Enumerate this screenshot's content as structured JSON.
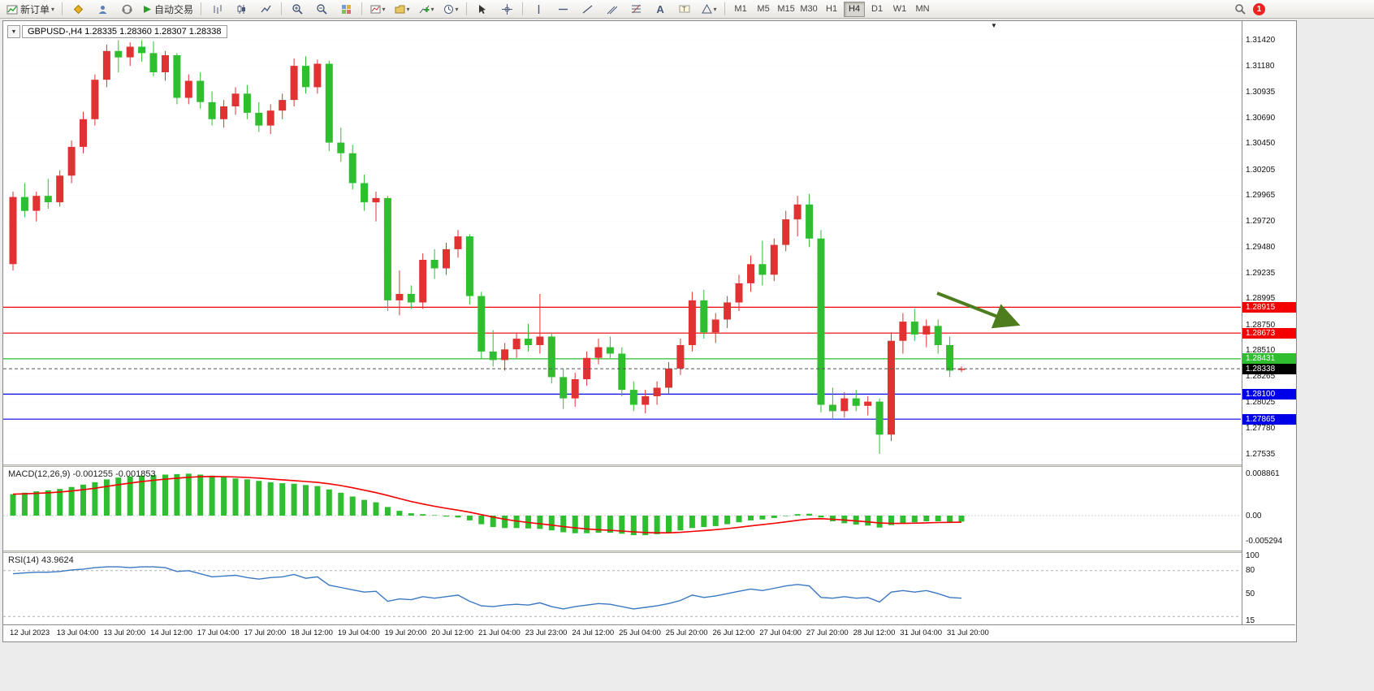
{
  "window": {
    "badge_count": "1"
  },
  "toolbar": {
    "new_order_label": "新订单",
    "autotrade_label": "自动交易",
    "timeframes": [
      {
        "label": "M1",
        "selected": false
      },
      {
        "label": "M5",
        "selected": false
      },
      {
        "label": "M15",
        "selected": false
      },
      {
        "label": "M30",
        "selected": false
      },
      {
        "label": "H1",
        "selected": false
      },
      {
        "label": "H4",
        "selected": true
      },
      {
        "label": "D1",
        "selected": false
      },
      {
        "label": "W1",
        "selected": false
      },
      {
        "label": "MN",
        "selected": false
      }
    ],
    "icons": [
      "new-order-icon",
      "mql-community-icon",
      "profile-icon",
      "support-icon",
      "autotrade-play-icon",
      "bar-chart-icon",
      "candlestick-chart-icon",
      "line-chart-icon",
      "zoom-in-icon",
      "zoom-out-icon",
      "tile-windows-icon",
      "new-chart-icon",
      "chart-profiles-icon",
      "indicators-icon",
      "periods-icon",
      "cursor-icon",
      "crosshair-icon",
      "vertical-line-icon",
      "horizontal-line-icon",
      "trendline-icon",
      "channel-icon",
      "fibonacci-icon",
      "text-icon",
      "text-label-icon",
      "shapes-icon",
      "search-icon",
      "notification-badge"
    ]
  },
  "chart": {
    "title": "GBPUSD-,H4 1.28335 1.28360 1.28307 1.28338",
    "collapse_glyph": "▼",
    "shift_marker_glyph": "▼"
  },
  "chart_data": [
    {
      "type": "candlestick",
      "symbol": "GBPUSD-",
      "timeframe": "H4",
      "ohlc_display": {
        "open": "1.28335",
        "high": "1.28360",
        "low": "1.28307",
        "close": "1.28338"
      },
      "ylim": [
        1.2744,
        1.316
      ],
      "up_color": "#e03232",
      "down_color": "#2fbe2f",
      "y_ticks": [
        "1.31420",
        "1.31180",
        "1.30935",
        "1.30690",
        "1.30450",
        "1.30205",
        "1.29965",
        "1.29720",
        "1.29480",
        "1.29235",
        "1.28995",
        "1.28750",
        "1.28510",
        "1.28265",
        "1.28025",
        "1.27780",
        "1.27535"
      ],
      "levels": [
        {
          "price": 1.28915,
          "label": "1.28915",
          "color": "#f40000",
          "type": "resistance"
        },
        {
          "price": 1.28673,
          "label": "1.28673",
          "color": "#f40000",
          "type": "resistance"
        },
        {
          "price": 1.28431,
          "label": "1.28431",
          "color": "#2fbe2f",
          "type": "support"
        },
        {
          "price": 1.281,
          "label": "1.28100",
          "color": "#0000e8",
          "type": "support"
        },
        {
          "price": 1.27865,
          "label": "1.27865",
          "color": "#0000e8",
          "type": "support"
        }
      ],
      "current_price": {
        "price": 1.28338,
        "label": "1.28338",
        "tag_color": "#000000"
      },
      "annotation_arrow": {
        "from": [
          1150,
          335
        ],
        "to": [
          1245,
          372
        ],
        "color": "#4e7d1e"
      },
      "x_labels": [
        "12 Jul 2023",
        "13 Jul 04:00",
        "13 Jul 20:00",
        "14 Jul 12:00",
        "17 Jul 04:00",
        "17 Jul 20:00",
        "18 Jul 12:00",
        "19 Jul 04:00",
        "19 Jul 20:00",
        "20 Jul 12:00",
        "21 Jul 04:00",
        "23 Jul 23:00",
        "24 Jul 12:00",
        "25 Jul 04:00",
        "25 Jul 20:00",
        "26 Jul 12:00",
        "27 Jul 04:00",
        "27 Jul 20:00",
        "28 Jul 12:00",
        "31 Jul 04:00",
        "31 Jul 20:00"
      ],
      "candles": [
        [
          1.2932,
          1.3,
          1.2926,
          1.2995
        ],
        [
          1.2995,
          1.3008,
          1.2976,
          1.2982
        ],
        [
          1.2982,
          1.3,
          1.2972,
          1.2996
        ],
        [
          1.2996,
          1.3012,
          1.2984,
          1.299
        ],
        [
          1.299,
          1.302,
          1.2986,
          1.3015
        ],
        [
          1.3015,
          1.3048,
          1.3008,
          1.3042
        ],
        [
          1.3042,
          1.3075,
          1.3036,
          1.3068
        ],
        [
          1.3068,
          1.311,
          1.3062,
          1.3105
        ],
        [
          1.3105,
          1.3138,
          1.3098,
          1.3132
        ],
        [
          1.3132,
          1.3142,
          1.3112,
          1.3126
        ],
        [
          1.3126,
          1.314,
          1.3118,
          1.3136
        ],
        [
          1.3136,
          1.3142,
          1.3122,
          1.313
        ],
        [
          1.313,
          1.3141,
          1.3108,
          1.3112
        ],
        [
          1.3112,
          1.3132,
          1.3104,
          1.3128
        ],
        [
          1.3128,
          1.313,
          1.3082,
          1.3088
        ],
        [
          1.3088,
          1.311,
          1.3082,
          1.3104
        ],
        [
          1.3104,
          1.3112,
          1.3078,
          1.3084
        ],
        [
          1.3084,
          1.3094,
          1.3062,
          1.3068
        ],
        [
          1.3068,
          1.3086,
          1.306,
          1.308
        ],
        [
          1.308,
          1.3098,
          1.3072,
          1.3092
        ],
        [
          1.3092,
          1.31,
          1.3068,
          1.3074
        ],
        [
          1.3074,
          1.3084,
          1.3056,
          1.3062
        ],
        [
          1.3062,
          1.3082,
          1.3054,
          1.3076
        ],
        [
          1.3076,
          1.3092,
          1.3068,
          1.3086
        ],
        [
          1.3086,
          1.3125,
          1.308,
          1.3118
        ],
        [
          1.3118,
          1.3127,
          1.3092,
          1.3098
        ],
        [
          1.3098,
          1.3124,
          1.3092,
          1.312
        ],
        [
          1.312,
          1.3123,
          1.3038,
          1.3046
        ],
        [
          1.3046,
          1.306,
          1.3028,
          1.3036
        ],
        [
          1.3036,
          1.3044,
          1.3002,
          1.3008
        ],
        [
          1.3008,
          1.3016,
          1.2982,
          1.299
        ],
        [
          1.299,
          1.3,
          1.2972,
          1.2994
        ],
        [
          1.2994,
          1.2996,
          1.2888,
          1.2898
        ],
        [
          1.2898,
          1.2926,
          1.2884,
          1.2904
        ],
        [
          1.2904,
          1.2912,
          1.289,
          1.2896
        ],
        [
          1.2896,
          1.2942,
          1.289,
          1.2936
        ],
        [
          1.2936,
          1.2946,
          1.2918,
          1.2928
        ],
        [
          1.2928,
          1.2952,
          1.2922,
          1.2946
        ],
        [
          1.2946,
          1.2964,
          1.2938,
          1.2958
        ],
        [
          1.2958,
          1.296,
          1.2894,
          1.2902
        ],
        [
          1.2902,
          1.2906,
          1.2843,
          1.285
        ],
        [
          1.285,
          1.287,
          1.2836,
          1.2842
        ],
        [
          1.2842,
          1.2858,
          1.2832,
          1.2852
        ],
        [
          1.2852,
          1.2868,
          1.2844,
          1.2862
        ],
        [
          1.2862,
          1.2876,
          1.285,
          1.2856
        ],
        [
          1.2856,
          1.2904,
          1.2848,
          1.2864
        ],
        [
          1.2864,
          1.2868,
          1.282,
          1.2826
        ],
        [
          1.2826,
          1.2834,
          1.2796,
          1.2806
        ],
        [
          1.2806,
          1.283,
          1.2798,
          1.2824
        ],
        [
          1.2824,
          1.285,
          1.2818,
          1.2844
        ],
        [
          1.2844,
          1.2862,
          1.2838,
          1.2854
        ],
        [
          1.2854,
          1.2864,
          1.2844,
          1.2848
        ],
        [
          1.2848,
          1.2854,
          1.2808,
          1.2814
        ],
        [
          1.2814,
          1.2822,
          1.2794,
          1.28
        ],
        [
          1.28,
          1.2814,
          1.2792,
          1.2808
        ],
        [
          1.2808,
          1.2822,
          1.28,
          1.2816
        ],
        [
          1.2816,
          1.284,
          1.281,
          1.2834
        ],
        [
          1.2834,
          1.2862,
          1.2828,
          1.2856
        ],
        [
          1.2856,
          1.2906,
          1.285,
          1.2898
        ],
        [
          1.2898,
          1.2908,
          1.2862,
          1.2868
        ],
        [
          1.2868,
          1.2886,
          1.2858,
          1.288
        ],
        [
          1.288,
          1.2902,
          1.2872,
          1.2896
        ],
        [
          1.2896,
          1.2922,
          1.2888,
          1.2914
        ],
        [
          1.2914,
          1.294,
          1.2906,
          1.2932
        ],
        [
          1.2932,
          1.2954,
          1.2912,
          1.2922
        ],
        [
          1.2922,
          1.2956,
          1.2916,
          1.295
        ],
        [
          1.295,
          1.2982,
          1.2944,
          1.2974
        ],
        [
          1.2974,
          1.2996,
          1.2958,
          1.2988
        ],
        [
          1.2988,
          1.2998,
          1.2948,
          1.2956
        ],
        [
          1.2956,
          1.2964,
          1.2793,
          1.28
        ],
        [
          1.28,
          1.2816,
          1.2786,
          1.2794
        ],
        [
          1.2794,
          1.2812,
          1.2788,
          1.2806
        ],
        [
          1.2806,
          1.2814,
          1.2794,
          1.2799
        ],
        [
          1.2799,
          1.2808,
          1.279,
          1.2803
        ],
        [
          1.2803,
          1.2806,
          1.2754,
          1.2772
        ],
        [
          1.2772,
          1.2868,
          1.2766,
          1.286
        ],
        [
          1.286,
          1.2886,
          1.2848,
          1.2878
        ],
        [
          1.2878,
          1.289,
          1.286,
          1.2866
        ],
        [
          1.2866,
          1.288,
          1.2854,
          1.2874
        ],
        [
          1.2874,
          1.288,
          1.2848,
          1.2856
        ],
        [
          1.2856,
          1.2864,
          1.2826,
          1.2832
        ],
        [
          1.28335,
          1.2836,
          1.28307,
          1.28338
        ]
      ]
    },
    {
      "type": "macd-histogram",
      "label": "MACD(12,26,9) -0.001255 -0.001853",
      "main_value": -0.001255,
      "signal_value": -0.001853,
      "histogram_color": "#2fbe2f",
      "signal_color": "#f40000",
      "y_ticks": [
        "0.008861",
        "0.00",
        "-0.005294"
      ],
      "values": [
        0.0045,
        0.0048,
        0.0051,
        0.0053,
        0.0056,
        0.006,
        0.0065,
        0.007,
        0.0076,
        0.008,
        0.0082,
        0.0084,
        0.0085,
        0.0086,
        0.0087,
        0.0088,
        0.0086,
        0.0084,
        0.0081,
        0.0078,
        0.0076,
        0.0073,
        0.007,
        0.0068,
        0.0067,
        0.0064,
        0.0062,
        0.0055,
        0.0048,
        0.004,
        0.0033,
        0.0028,
        0.0018,
        0.001,
        0.0005,
        0.0003,
        0.0001,
        -0.0002,
        -0.0004,
        -0.001,
        -0.0018,
        -0.0024,
        -0.0026,
        -0.0026,
        -0.0027,
        -0.0028,
        -0.0031,
        -0.0035,
        -0.0037,
        -0.0037,
        -0.0036,
        -0.0036,
        -0.0038,
        -0.0041,
        -0.0041,
        -0.0039,
        -0.0036,
        -0.0031,
        -0.0026,
        -0.0024,
        -0.0022,
        -0.0018,
        -0.0014,
        -0.001,
        -0.0008,
        -0.0005,
        -0.0001,
        0.0003,
        0.0004,
        -0.0004,
        -0.0012,
        -0.0016,
        -0.0019,
        -0.0021,
        -0.0025,
        -0.002,
        -0.0016,
        -0.0014,
        -0.0012,
        -0.0012,
        -0.0013,
        -0.001255
      ]
    },
    {
      "type": "line",
      "label": "RSI(14) 43.9624",
      "current_value": 43.9624,
      "line_color": "#3a78c2",
      "y_ticks": [
        "100",
        "80",
        "50",
        "15"
      ],
      "levels": [
        80,
        20
      ],
      "values": [
        76,
        77,
        78,
        78,
        79,
        81,
        82,
        84,
        85,
        85,
        84,
        85,
        85,
        84,
        79,
        80,
        76,
        72,
        73,
        74,
        71,
        69,
        71,
        72,
        75,
        70,
        72,
        61,
        58,
        55,
        52,
        53,
        40,
        43,
        42,
        46,
        44,
        46,
        48,
        40,
        34,
        33,
        35,
        36,
        35,
        38,
        33,
        30,
        33,
        35,
        37,
        36,
        33,
        30,
        32,
        34,
        37,
        41,
        48,
        45,
        47,
        50,
        53,
        56,
        54,
        57,
        60,
        62,
        60,
        45,
        44,
        46,
        44,
        45,
        39,
        52,
        54,
        52,
        54,
        50,
        45,
        43.96
      ]
    }
  ]
}
